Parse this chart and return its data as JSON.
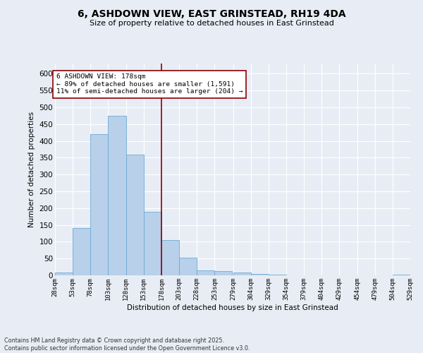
{
  "title_line1": "6, ASHDOWN VIEW, EAST GRINSTEAD, RH19 4DA",
  "title_line2": "Size of property relative to detached houses in East Grinstead",
  "xlabel": "Distribution of detached houses by size in East Grinstead",
  "ylabel": "Number of detached properties",
  "bar_color": "#b8d0ea",
  "bar_edge_color": "#6eaad4",
  "background_color": "#e8edf5",
  "grid_color": "#ffffff",
  "vline_color": "#8b0000",
  "vline_x": 178,
  "annotation_text": "6 ASHDOWN VIEW: 178sqm\n← 89% of detached houses are smaller (1,591)\n11% of semi-detached houses are larger (204) →",
  "annotation_box_color": "#ffffff",
  "annotation_box_edge": "#8b0000",
  "footnote": "Contains HM Land Registry data © Crown copyright and database right 2025.\nContains public sector information licensed under the Open Government Licence v3.0.",
  "bins": [
    28,
    53,
    78,
    103,
    128,
    153,
    178,
    203,
    228,
    253,
    279,
    304,
    329,
    354,
    379,
    404,
    429,
    454,
    479,
    504,
    529
  ],
  "counts": [
    8,
    140,
    420,
    475,
    360,
    190,
    105,
    53,
    14,
    13,
    9,
    4,
    2,
    1,
    1,
    0,
    0,
    0,
    0,
    3
  ],
  "ylim": [
    0,
    630
  ],
  "yticks": [
    0,
    50,
    100,
    150,
    200,
    250,
    300,
    350,
    400,
    450,
    500,
    550,
    600
  ]
}
